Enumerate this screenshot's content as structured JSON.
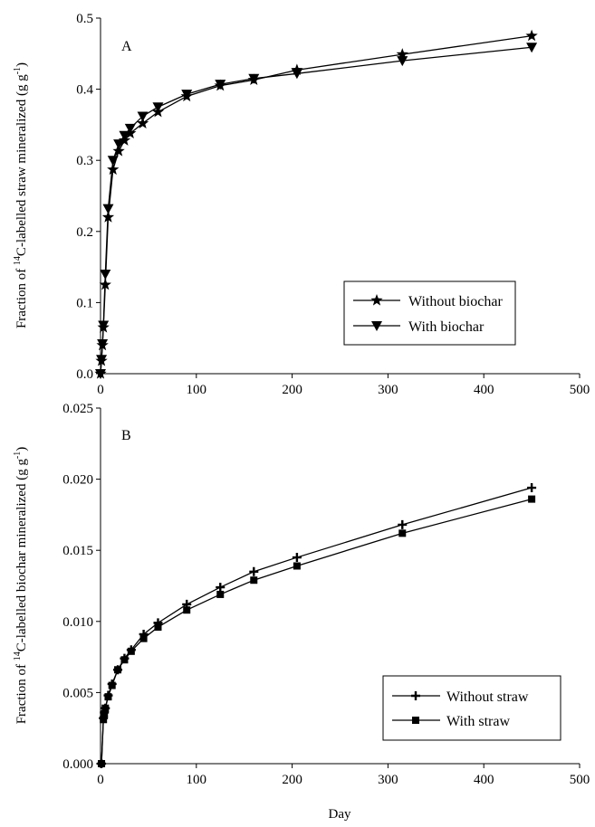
{
  "chart_data": [
    {
      "type": "line",
      "panel_label": "A",
      "ylabel_parts": [
        "Fraction of ",
        "14",
        "C-labelled straw mineralized (g g",
        "-1",
        ")"
      ],
      "xlim": [
        0,
        500
      ],
      "ylim": [
        0,
        0.5
      ],
      "yticks": [
        "0.0",
        "0.1",
        "0.2",
        "0.3",
        "0.4",
        "0.5"
      ],
      "xticks": [
        "0",
        "100",
        "200",
        "300",
        "400",
        "500"
      ],
      "grid": false,
      "legend_position": "lower-right",
      "series": [
        {
          "name": "Without biochar",
          "marker": "star",
          "points": [
            [
              0,
              0
            ],
            [
              1,
              0.018
            ],
            [
              2,
              0.04
            ],
            [
              3,
              0.065
            ],
            [
              5,
              0.125
            ],
            [
              8,
              0.22
            ],
            [
              13,
              0.287
            ],
            [
              19,
              0.313
            ],
            [
              25,
              0.328
            ],
            [
              31,
              0.338
            ],
            [
              44,
              0.352
            ],
            [
              60,
              0.368
            ],
            [
              90,
              0.39
            ],
            [
              125,
              0.405
            ],
            [
              160,
              0.413
            ],
            [
              205,
              0.427
            ],
            [
              315,
              0.449
            ],
            [
              450,
              0.475
            ]
          ]
        },
        {
          "name": "With biochar",
          "marker": "triangle-down",
          "points": [
            [
              0,
              0
            ],
            [
              1,
              0.02
            ],
            [
              2,
              0.042
            ],
            [
              3,
              0.068
            ],
            [
              5,
              0.14
            ],
            [
              8,
              0.232
            ],
            [
              13,
              0.3
            ],
            [
              19,
              0.323
            ],
            [
              25,
              0.335
            ],
            [
              31,
              0.345
            ],
            [
              44,
              0.362
            ],
            [
              60,
              0.375
            ],
            [
              90,
              0.393
            ],
            [
              125,
              0.407
            ],
            [
              160,
              0.415
            ],
            [
              205,
              0.422
            ],
            [
              315,
              0.44
            ],
            [
              450,
              0.459
            ]
          ]
        }
      ]
    },
    {
      "type": "line",
      "panel_label": "B",
      "ylabel_parts": [
        "Fraction of ",
        "14",
        "C-labelled biochar mineralized (g g",
        "-1",
        ")"
      ],
      "xlabel": "Day",
      "xlim": [
        0,
        500
      ],
      "ylim": [
        0,
        0.025
      ],
      "yticks": [
        "0.000",
        "0.005",
        "0.010",
        "0.015",
        "0.020",
        "0.025"
      ],
      "xticks": [
        "0",
        "100",
        "200",
        "300",
        "400",
        "500"
      ],
      "grid": false,
      "legend_position": "lower-right",
      "series": [
        {
          "name": "Without straw",
          "marker": "plus",
          "points": [
            [
              1,
              0
            ],
            [
              3,
              0.0032
            ],
            [
              4,
              0.0036
            ],
            [
              5,
              0.0039
            ],
            [
              8,
              0.0048
            ],
            [
              12,
              0.0056
            ],
            [
              18,
              0.0066
            ],
            [
              25,
              0.0074
            ],
            [
              32,
              0.008
            ],
            [
              45,
              0.0091
            ],
            [
              60,
              0.0099
            ],
            [
              90,
              0.0112
            ],
            [
              125,
              0.0124
            ],
            [
              160,
              0.0135
            ],
            [
              205,
              0.0145
            ],
            [
              315,
              0.0168
            ],
            [
              450,
              0.0194
            ]
          ]
        },
        {
          "name": "With straw",
          "marker": "square",
          "points": [
            [
              1,
              0
            ],
            [
              3,
              0.0031
            ],
            [
              4,
              0.0035
            ],
            [
              5,
              0.0039
            ],
            [
              8,
              0.0047
            ],
            [
              12,
              0.0055
            ],
            [
              18,
              0.0066
            ],
            [
              25,
              0.0073
            ],
            [
              32,
              0.0079
            ],
            [
              45,
              0.0088
            ],
            [
              60,
              0.0096
            ],
            [
              90,
              0.0108
            ],
            [
              125,
              0.0119
            ],
            [
              160,
              0.0129
            ],
            [
              205,
              0.0139
            ],
            [
              315,
              0.0162
            ],
            [
              450,
              0.0186
            ]
          ]
        }
      ]
    }
  ]
}
